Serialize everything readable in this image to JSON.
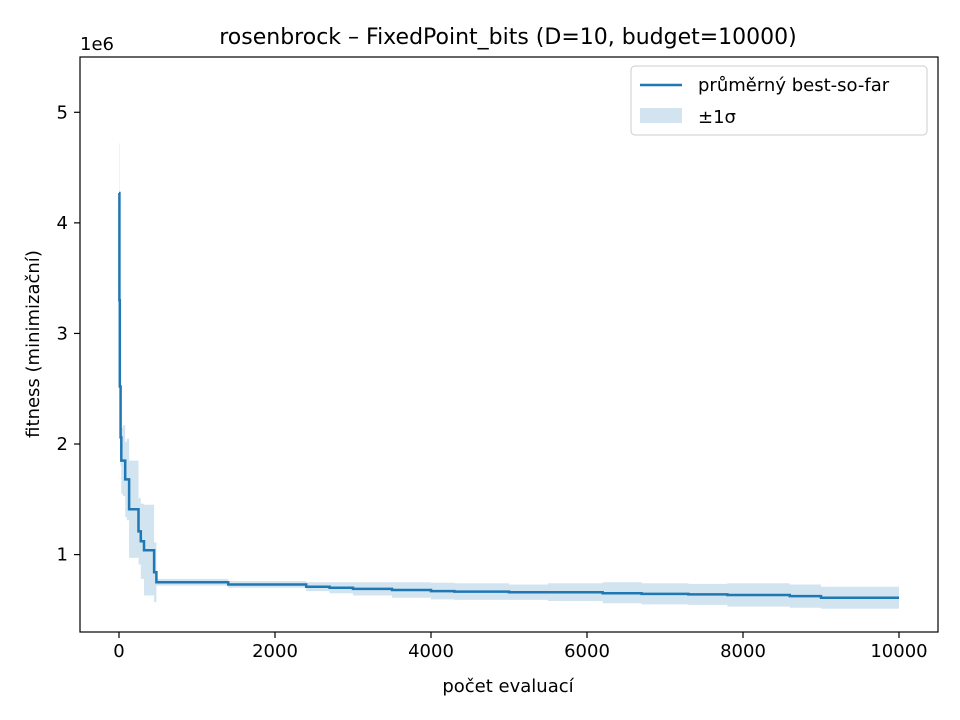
{
  "chart_data": {
    "type": "line",
    "title": "rosenbrock – FixedPoint_bits (D=10, budget=10000)",
    "xlabel": "počet evaluací",
    "ylabel": "fitness (minimizační)",
    "y_offset_label": "1e6",
    "xlim": [
      -500,
      10500
    ],
    "ylim": [
      300000,
      5500000
    ],
    "x_ticks": [
      0,
      2000,
      4000,
      6000,
      8000,
      10000
    ],
    "x_tick_labels": [
      "0",
      "2000",
      "4000",
      "6000",
      "8000",
      "10000"
    ],
    "y_ticks": [
      1000000,
      2000000,
      3000000,
      4000000,
      5000000
    ],
    "y_tick_labels": [
      "1",
      "2",
      "3",
      "4",
      "5"
    ],
    "grid": false,
    "legend_placement": "top-right",
    "series": [
      {
        "name": "průměrný best-so-far",
        "kind": "line",
        "color": "#1f77b4",
        "x": [
          0,
          5,
          10,
          20,
          30,
          50,
          80,
          100,
          130,
          250,
          280,
          320,
          450,
          480,
          1000,
          1400,
          2000,
          2400,
          2700,
          3000,
          3500,
          4000,
          4300,
          5000,
          5500,
          6000,
          6200,
          6700,
          7300,
          7800,
          8600,
          9000,
          10000
        ],
        "y": [
          4270000,
          3300000,
          2520000,
          2060000,
          1850000,
          1850000,
          1680000,
          1680000,
          1410000,
          1210000,
          1120000,
          1040000,
          840000,
          750000,
          750000,
          730000,
          730000,
          710000,
          700000,
          690000,
          680000,
          670000,
          665000,
          660000,
          660000,
          660000,
          650000,
          645000,
          640000,
          635000,
          625000,
          610000,
          610000
        ]
      },
      {
        "name": "±1σ",
        "kind": "band",
        "color": "#1f77b4",
        "opacity": 0.2,
        "x": [
          0,
          5,
          10,
          20,
          30,
          50,
          80,
          100,
          130,
          250,
          280,
          320,
          450,
          480,
          1000,
          1400,
          2000,
          2400,
          2700,
          3000,
          3500,
          4000,
          4300,
          5000,
          5500,
          6000,
          6200,
          6700,
          7300,
          7800,
          8600,
          9000,
          10000
        ],
        "lower": [
          3820000,
          2900000,
          2150000,
          1800000,
          1550000,
          1530000,
          1340000,
          1310000,
          970000,
          910000,
          780000,
          630000,
          570000,
          720000,
          720000,
          700000,
          700000,
          670000,
          650000,
          630000,
          610000,
          595000,
          590000,
          590000,
          580000,
          580000,
          560000,
          550000,
          545000,
          530000,
          520000,
          510000,
          510000
        ],
        "upper": [
          4720000,
          3700000,
          2890000,
          2320000,
          2150000,
          2170000,
          2020000,
          2050000,
          1850000,
          1510000,
          1460000,
          1450000,
          1110000,
          780000,
          780000,
          760000,
          760000,
          750000,
          750000,
          750000,
          750000,
          745000,
          740000,
          730000,
          740000,
          740000,
          750000,
          740000,
          735000,
          740000,
          730000,
          710000,
          710000
        ]
      }
    ]
  }
}
